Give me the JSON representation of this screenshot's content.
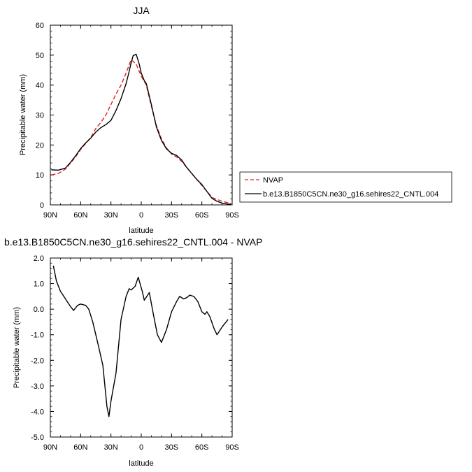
{
  "chart_data": [
    {
      "type": "line",
      "title": "JJA",
      "xlabel": "latitude",
      "ylabel": "Precipitable water (mm)",
      "xticks": [
        "90N",
        "60N",
        "30N",
        "0",
        "30S",
        "60S",
        "90S"
      ],
      "yticks": [
        "0",
        "10",
        "20",
        "30",
        "40",
        "50",
        "60"
      ],
      "xlim": [
        90,
        -90
      ],
      "ylim": [
        0,
        60
      ],
      "legend_position": "right",
      "series": [
        {
          "name": "NVAP",
          "color": "#dd2222",
          "dash": "dashed",
          "x": [
            89,
            82,
            75,
            70,
            65,
            60,
            55,
            50,
            45,
            40,
            35,
            30,
            25,
            20,
            15,
            10,
            5,
            0,
            -5,
            -10,
            -15,
            -20,
            -25,
            -30,
            -35,
            -40,
            -45,
            -50,
            -55,
            -60,
            -65,
            -70,
            -75,
            -80,
            -85,
            -89
          ],
          "y": [
            10.0,
            10.5,
            12.0,
            14.0,
            16.0,
            18.5,
            20.5,
            22.5,
            25.5,
            27.5,
            30.0,
            33.5,
            37.0,
            40.0,
            44.0,
            48.5,
            47.0,
            43.0,
            40.0,
            33.0,
            26.5,
            22.0,
            19.0,
            17.0,
            16.0,
            14.5,
            12.5,
            10.5,
            8.5,
            6.5,
            4.5,
            2.5,
            1.8,
            1.2,
            0.8,
            0.5
          ]
        },
        {
          "name": "b.e13.B1850C5CN.ne30_g16.sehires22_CNTL.004",
          "color": "#000000",
          "dash": "solid",
          "x": [
            89,
            82,
            75,
            70,
            65,
            60,
            55,
            50,
            45,
            40,
            35,
            30,
            25,
            20,
            15,
            12,
            10,
            8,
            5,
            2,
            0,
            -3,
            -5,
            -10,
            -15,
            -20,
            -25,
            -30,
            -35,
            -40,
            -45,
            -50,
            -55,
            -60,
            -65,
            -70,
            -75,
            -80,
            -85,
            -89
          ],
          "y": [
            11.7,
            11.6,
            12.3,
            14.2,
            16.4,
            18.8,
            20.7,
            22.3,
            24.3,
            25.8,
            26.8,
            28.2,
            31.5,
            35.5,
            40.5,
            44.5,
            47.5,
            49.8,
            50.3,
            47.0,
            44.0,
            41.5,
            40.5,
            33.5,
            26.0,
            21.5,
            18.7,
            17.2,
            16.5,
            15.0,
            12.5,
            10.5,
            8.5,
            6.8,
            4.5,
            2.2,
            1.2,
            0.6,
            0.3,
            0.2
          ]
        }
      ]
    },
    {
      "type": "line",
      "title": "b.e13.B1850C5CN.ne30_g16.sehires22_CNTL.004 - NVAP",
      "xlabel": "latitude",
      "ylabel": "Precipitable water (mm)",
      "xticks": [
        "90N",
        "60N",
        "30N",
        "0",
        "30S",
        "60S",
        "90S"
      ],
      "yticks": [
        "2.0",
        "1.0",
        "0.0",
        "-1.0",
        "-2.0",
        "-3.0",
        "-4.0",
        "-5.0"
      ],
      "xlim": [
        90,
        -90
      ],
      "ylim": [
        -5,
        2
      ],
      "series": [
        {
          "color": "#000000",
          "dash": "solid",
          "x": [
            87,
            84,
            80,
            75,
            70,
            67,
            63,
            60,
            55,
            52,
            48,
            45,
            42,
            38,
            34,
            32,
            30,
            25,
            20,
            15,
            12,
            10,
            6,
            3,
            -1,
            -3,
            -8,
            -12,
            -16,
            -20,
            -25,
            -30,
            -35,
            -38,
            -42,
            -45,
            -48,
            -52,
            -56,
            -60,
            -63,
            -65,
            -68,
            -72,
            -75,
            -80,
            -86
          ],
          "y": [
            1.7,
            1.1,
            0.7,
            0.4,
            0.1,
            -0.05,
            0.15,
            0.2,
            0.15,
            0.0,
            -0.5,
            -1.0,
            -1.5,
            -2.2,
            -3.8,
            -4.2,
            -3.6,
            -2.5,
            -0.4,
            0.5,
            0.8,
            0.75,
            0.9,
            1.25,
            0.7,
            0.35,
            0.65,
            -0.2,
            -1.0,
            -1.3,
            -0.8,
            -0.1,
            0.3,
            0.5,
            0.4,
            0.45,
            0.55,
            0.5,
            0.3,
            -0.1,
            -0.2,
            -0.1,
            -0.3,
            -0.75,
            -1.0,
            -0.7,
            -0.4
          ]
        }
      ]
    }
  ]
}
